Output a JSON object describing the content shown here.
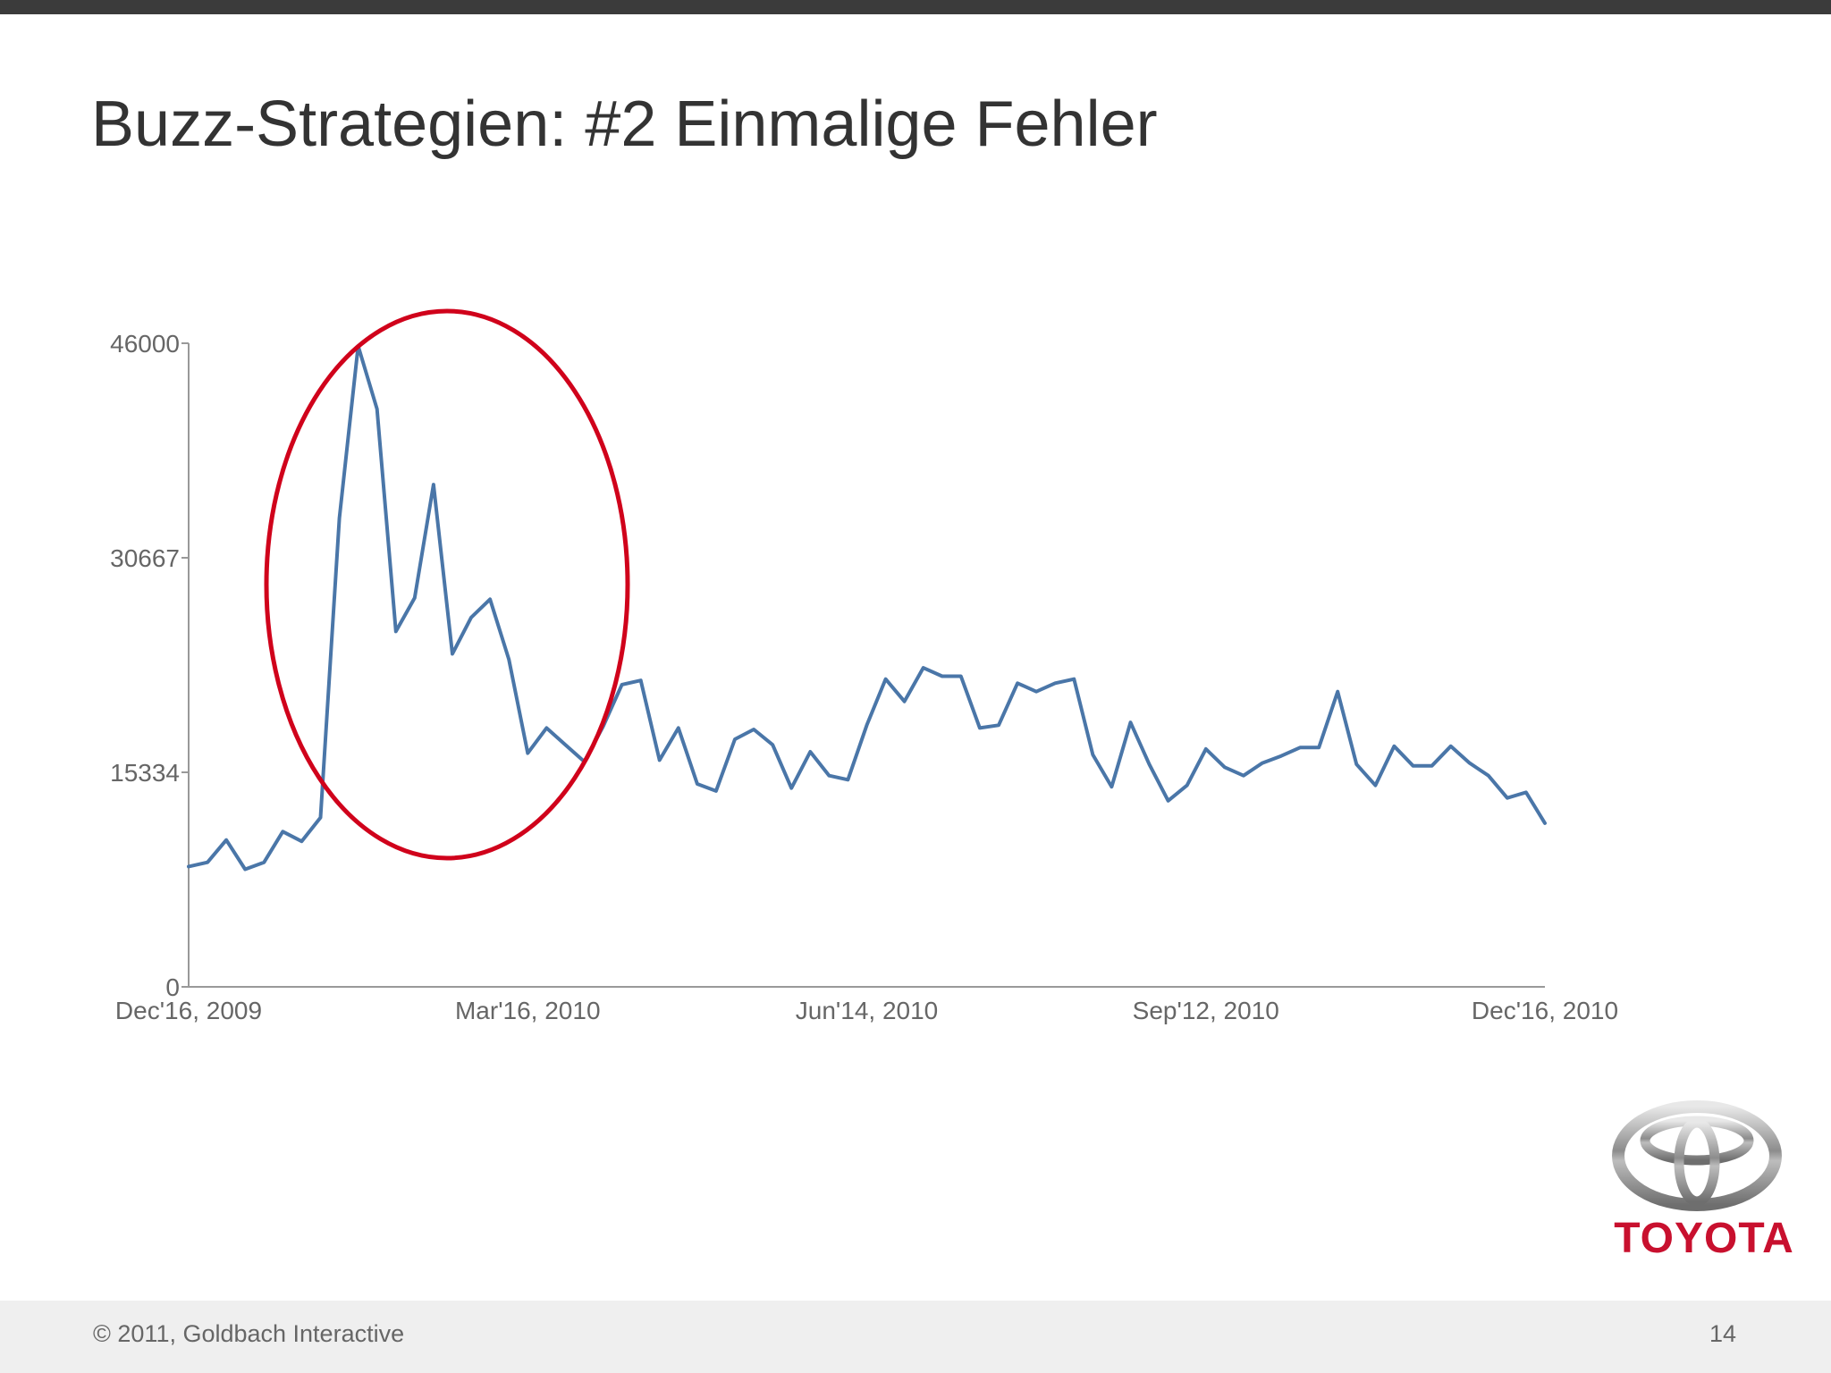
{
  "slide": {
    "title": "Buzz-Strategien: #2 Einmalige Fehler",
    "page_number": "14",
    "copyright": "© 2011, Goldbach Interactive"
  },
  "brand": {
    "name": "TOYOTA",
    "color": "#c8102e",
    "icon": "toyota-emblem-icon"
  },
  "colors": {
    "line": "#4a76a8",
    "highlight": "#d0021b",
    "axis": "#999999",
    "tick_text": "#666666"
  },
  "chart_data": {
    "type": "line",
    "title": "",
    "xlabel": "",
    "ylabel": "",
    "ylim": [
      0,
      46000
    ],
    "y_ticks": [
      {
        "value": 0,
        "label": "0"
      },
      {
        "value": 15334,
        "label": "15334"
      },
      {
        "value": 30667,
        "label": "30667"
      },
      {
        "value": 46000,
        "label": "46000"
      }
    ],
    "x_ticks": [
      {
        "week": 0,
        "label": "Dec'16, 2009"
      },
      {
        "week": 13,
        "label": "Mar'16, 2010"
      },
      {
        "week": 26,
        "label": "Jun'14, 2010"
      },
      {
        "week": 39,
        "label": "Sep'12, 2010"
      },
      {
        "week": 52,
        "label": "Dec'16, 2010"
      }
    ],
    "x_unit": "weekly, Dec'16, 2009 – Dec'16, 2010",
    "grid": false,
    "annotation": "red ellipse highlighting the peak period Jan–Mar 2010",
    "series": [
      {
        "values": [
          8600,
          8900,
          10500,
          8400,
          8900,
          11100,
          10400,
          12100,
          33500,
          45800,
          41300,
          25400,
          27800,
          35900,
          23800,
          26400,
          27700,
          23400,
          16700,
          18500,
          17300,
          16100,
          18600,
          21600,
          21900,
          16200,
          18500,
          14500,
          14000,
          17700,
          18400,
          17300,
          14200,
          16800,
          15100,
          14800,
          18700,
          22000,
          20400,
          22800,
          22200,
          22200,
          18500,
          18700,
          21700,
          21100,
          21700,
          22000,
          16600,
          14300,
          18900,
          15900,
          13300,
          14400,
          17000,
          15700,
          15100,
          16000,
          16500,
          17100,
          17100,
          21100,
          15900,
          14400,
          17200,
          15800,
          15800,
          17200,
          16000,
          15100,
          13500,
          13900,
          11700
        ]
      }
    ]
  }
}
